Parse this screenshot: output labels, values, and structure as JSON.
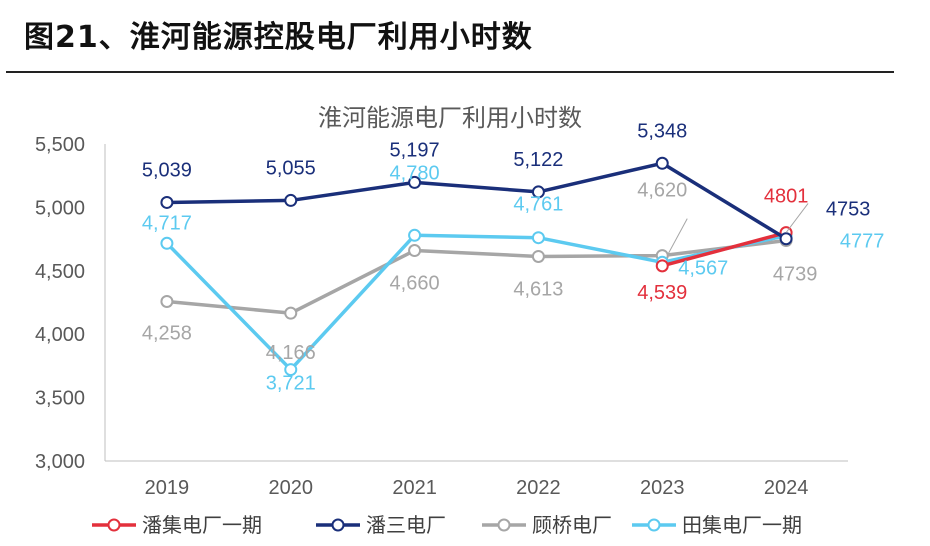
{
  "figure_title": "图21、淮河能源控股电厂利用小时数",
  "chart_data": {
    "type": "line",
    "title": "淮河能源电厂利用小时数",
    "categories": [
      "2019",
      "2020",
      "2021",
      "2022",
      "2023",
      "2024"
    ],
    "ylim": [
      3000,
      5500
    ],
    "yticks": [
      3000,
      3500,
      4000,
      4500,
      5000,
      5500
    ],
    "ytick_labels": [
      "3,000",
      "3,500",
      "4,000",
      "4,500",
      "5,000",
      "5,500"
    ],
    "grid": false,
    "legend_position": "bottom",
    "series": [
      {
        "name": "潘集电厂一期",
        "color": "#e3303c",
        "values": [
          null,
          null,
          null,
          null,
          4539,
          4801
        ],
        "labels": [
          "",
          "",
          "",
          "",
          "4,539",
          "4801"
        ]
      },
      {
        "name": "潘三电厂",
        "color": "#1a2f7a",
        "values": [
          5039,
          5055,
          5197,
          5122,
          5348,
          4753
        ],
        "labels": [
          "5,039",
          "5,055",
          "5,197",
          "5,122",
          "5,348",
          "4753"
        ]
      },
      {
        "name": "顾桥电厂",
        "color": "#a6a6a6",
        "values": [
          4258,
          4166,
          4660,
          4613,
          4620,
          4739
        ],
        "labels": [
          "4,258",
          "4,166",
          "4,660",
          "4,613",
          "4,620",
          "4739"
        ]
      },
      {
        "name": "田集电厂一期",
        "color": "#5ccaf0",
        "values": [
          4717,
          3721,
          4780,
          4761,
          4567,
          4777
        ],
        "labels": [
          "4,717",
          "3,721",
          "4,780",
          "4,761",
          "4,567",
          "4777"
        ]
      }
    ]
  }
}
